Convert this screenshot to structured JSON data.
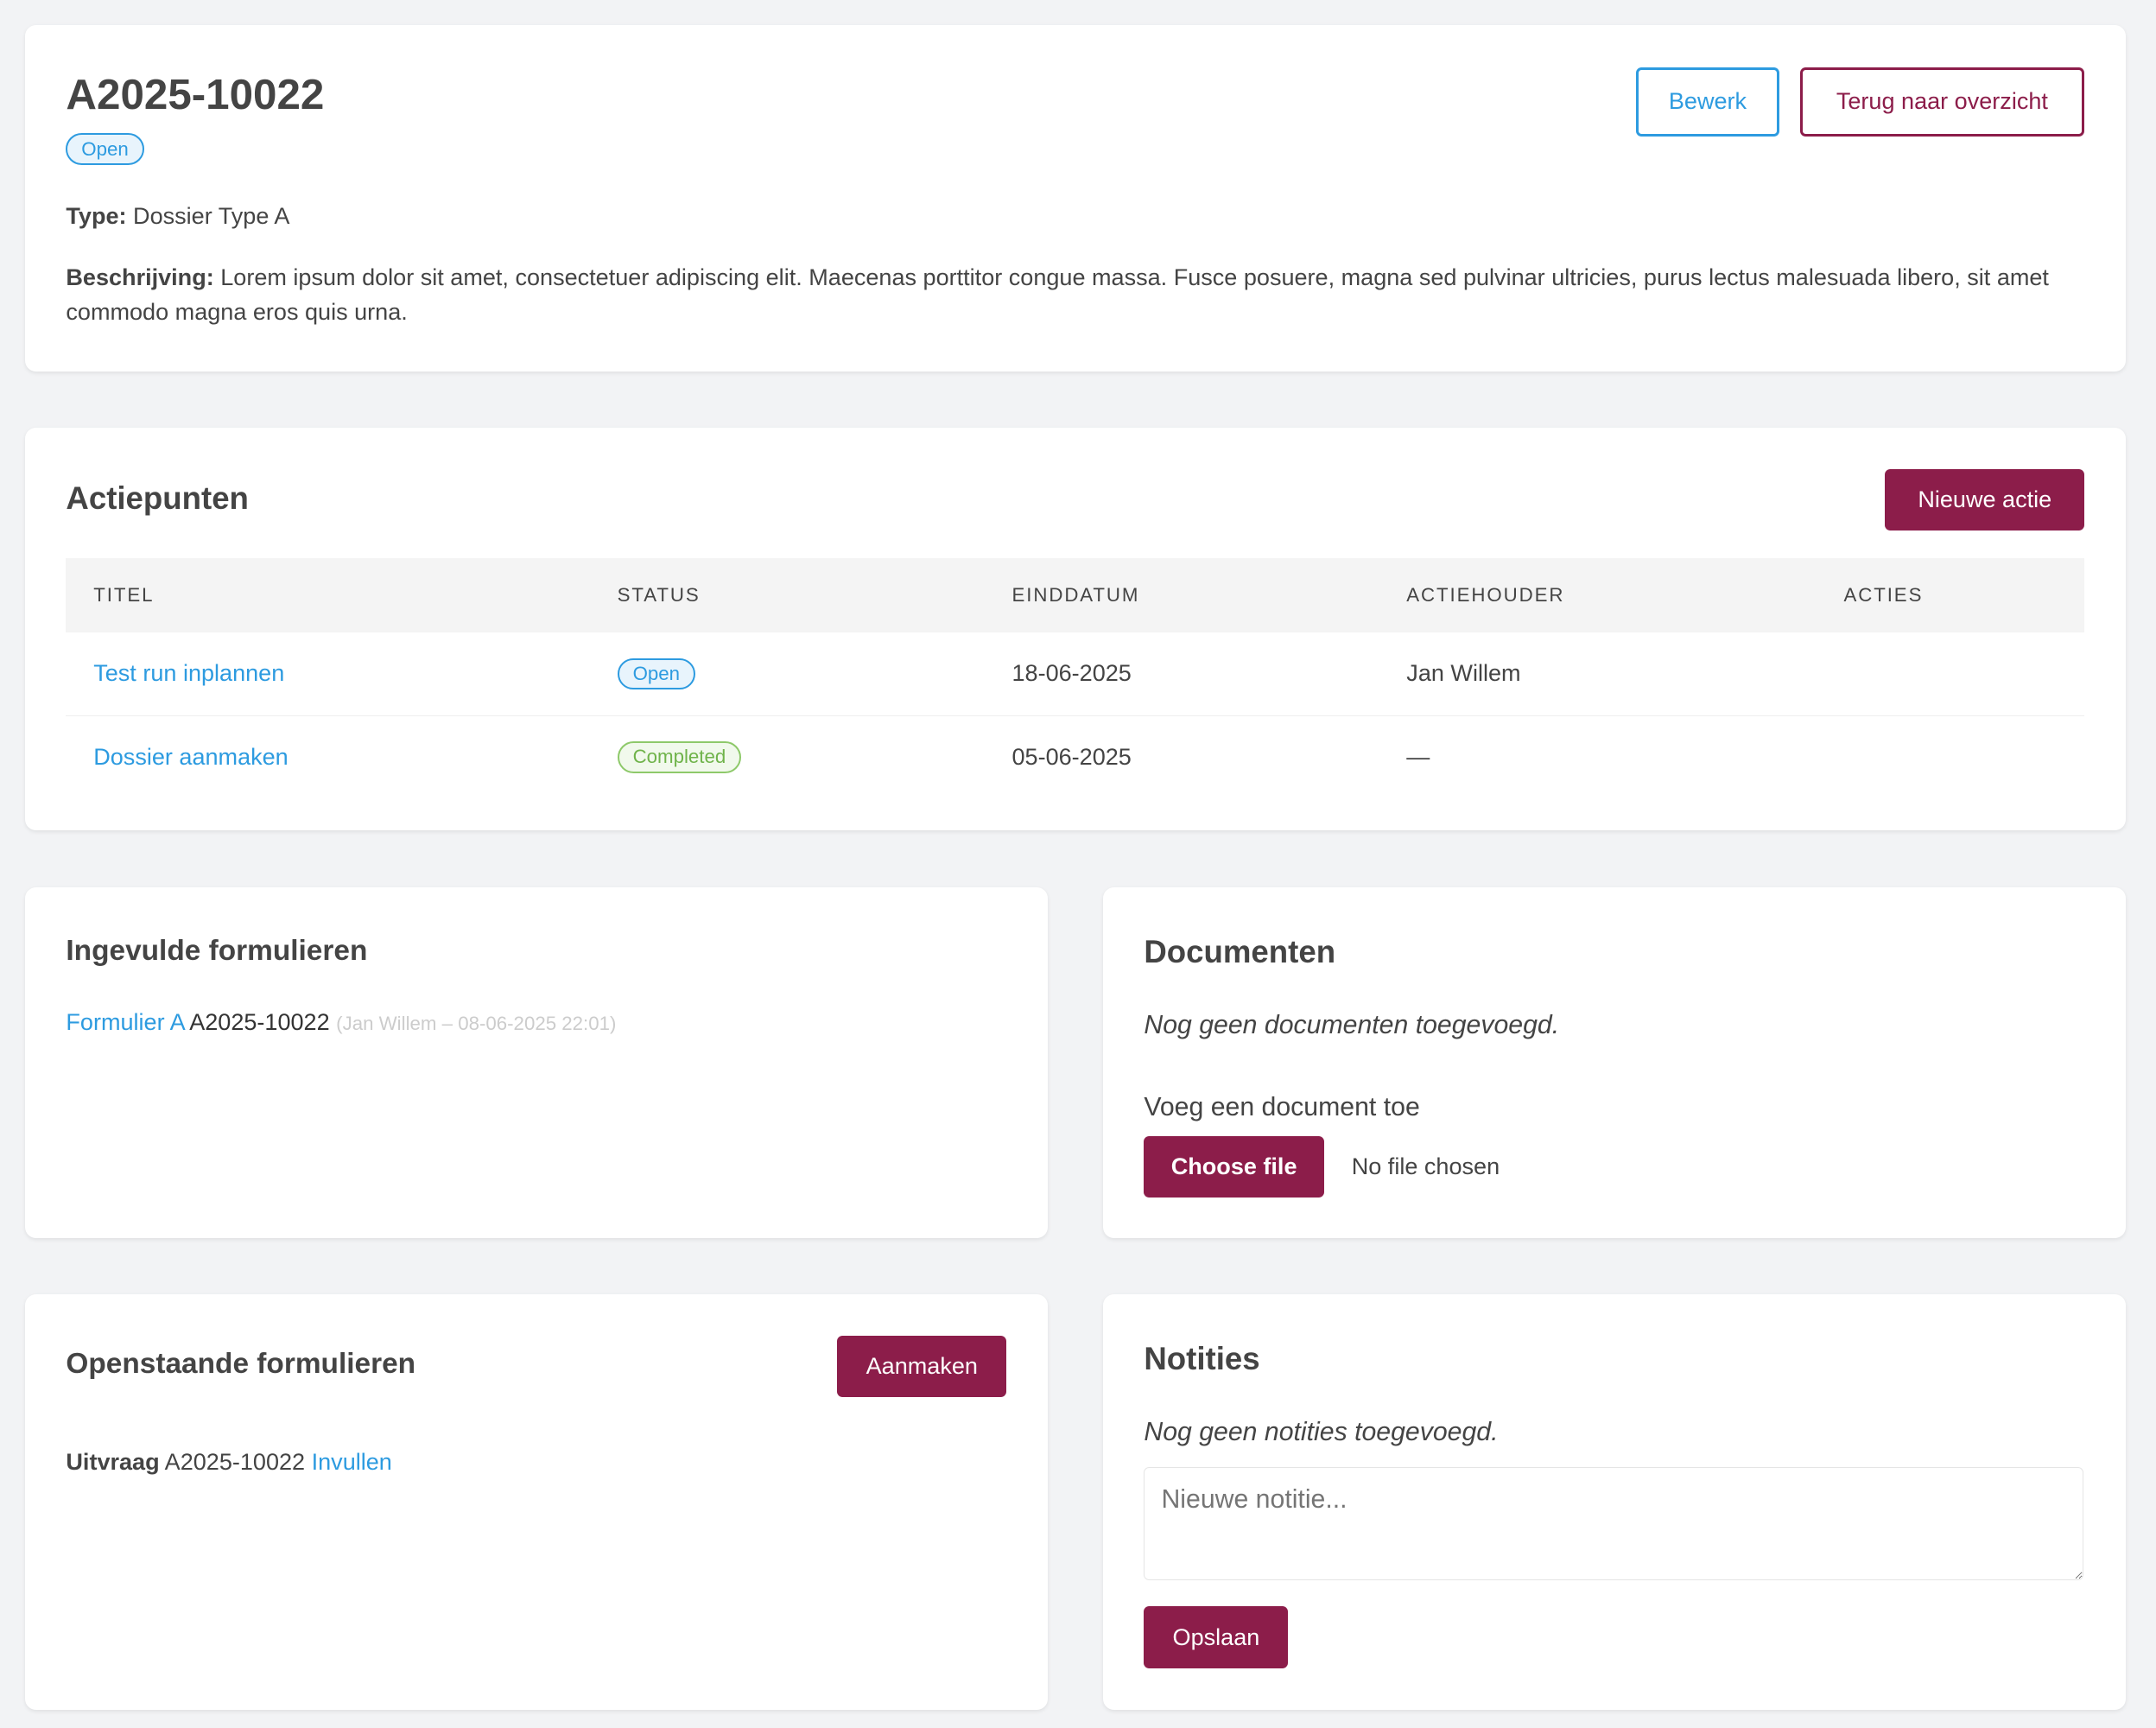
{
  "dossier": {
    "title": "A2025-10022",
    "status": "Open",
    "type_label": "Type:",
    "type_value": "Dossier Type A",
    "desc_label": "Beschrijving:",
    "desc_value": "Lorem ipsum dolor sit amet, consectetuer adipiscing elit. Maecenas porttitor congue massa. Fusce posuere, magna sed pulvinar ultricies, purus lectus malesuada libero, sit amet commodo magna eros quis urna.",
    "edit_label": "Bewerk",
    "back_label": "Terug naar overzicht"
  },
  "actions": {
    "title": "Actiepunten",
    "new_label": "Nieuwe actie",
    "columns": [
      "TITEL",
      "STATUS",
      "EINDDATUM",
      "ACTIEHOUDER",
      "ACTIES"
    ],
    "rows": [
      {
        "title": "Test run inplannen",
        "status": "Open",
        "date": "18-06-2025",
        "owner": "Jan Willem"
      },
      {
        "title": "Dossier aanmaken",
        "status": "Completed",
        "date": "05-06-2025",
        "owner": "—"
      }
    ]
  },
  "filled": {
    "title": "Ingevulde formulieren",
    "link": "Formulier A",
    "code": "A2025-10022",
    "meta": "(Jan Willem – 08-06-2025 22:01)"
  },
  "documents": {
    "title": "Documenten",
    "empty": "Nog geen documenten toegevoegd.",
    "add_label": "Voeg een document toe",
    "choose_label": "Choose file",
    "no_file": "No file chosen"
  },
  "pending": {
    "title": "Openstaande formulieren",
    "create_label": "Aanmaken",
    "item_label": "Uitvraag",
    "item_code": "A2025-10022",
    "item_link": "Invullen"
  },
  "notes": {
    "title": "Notities",
    "empty": "Nog geen notities toegevoegd.",
    "placeholder": "Nieuwe notitie...",
    "save_label": "Opslaan"
  },
  "colors": {
    "brand": "#8c1d4a",
    "link": "#2d9be0",
    "completed": "#6fb34a"
  }
}
